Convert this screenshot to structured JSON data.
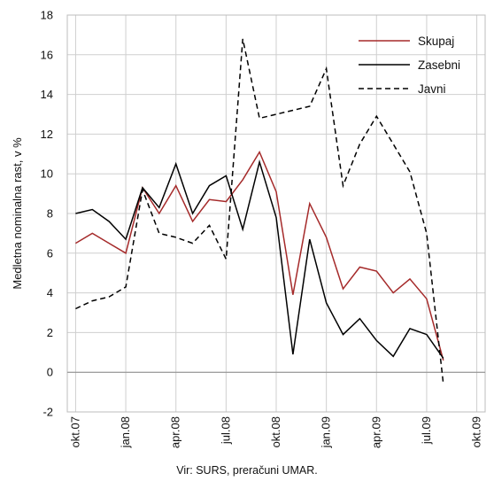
{
  "chart_data": {
    "type": "line",
    "ylabel": "Medletna nominalna rast, v %",
    "ylim": [
      -2,
      18
    ],
    "yticks": [
      -2,
      0,
      2,
      4,
      6,
      8,
      10,
      12,
      14,
      16,
      18
    ],
    "categories": [
      "okt.07",
      "nov.07",
      "dec.07",
      "jan.08",
      "feb.08",
      "mar.08",
      "apr.08",
      "maj.08",
      "jun.08",
      "jul.08",
      "avg.08",
      "sep.08",
      "okt.08",
      "nov.08",
      "dec.08",
      "jan.09",
      "feb.09",
      "mar.09",
      "apr.09",
      "maj.09",
      "jun.09",
      "jul.09",
      "avg.09",
      "sep.09",
      "okt.09"
    ],
    "tick_labels": [
      "okt.07",
      "jan.08",
      "apr.08",
      "jul.08",
      "okt.08",
      "jan.09",
      "apr.09",
      "jul.09",
      "okt.09"
    ],
    "grid": true,
    "legend": "top-right",
    "series": [
      {
        "name": "Skupaj",
        "style": "solid",
        "color": "#a52a2a",
        "values": [
          6.5,
          7.0,
          6.5,
          6.0,
          9.3,
          8.0,
          9.4,
          7.6,
          8.7,
          8.6,
          9.7,
          11.1,
          9.1,
          3.9,
          8.5,
          6.8,
          4.2,
          5.3,
          5.1,
          4.0,
          4.7,
          3.7,
          0.6,
          null,
          null
        ]
      },
      {
        "name": "Zasebni",
        "style": "solid",
        "color": "#000000",
        "values": [
          8.0,
          8.2,
          7.6,
          6.7,
          9.3,
          8.3,
          10.5,
          8.0,
          9.4,
          9.9,
          7.2,
          10.6,
          7.8,
          0.9,
          6.7,
          3.5,
          1.9,
          2.7,
          1.6,
          0.8,
          2.2,
          1.9,
          0.7,
          null,
          null
        ]
      },
      {
        "name": "Javni",
        "style": "dashed",
        "color": "#000000",
        "values": [
          3.2,
          3.6,
          3.8,
          4.3,
          9.2,
          7.0,
          6.8,
          6.5,
          7.4,
          5.7,
          16.8,
          12.8,
          13.0,
          13.2,
          13.4,
          15.3,
          9.4,
          11.5,
          12.9,
          11.5,
          10.1,
          7.0,
          -0.6,
          null,
          null
        ]
      }
    ]
  },
  "source": "Vir: SURS, preračuni UMAR."
}
